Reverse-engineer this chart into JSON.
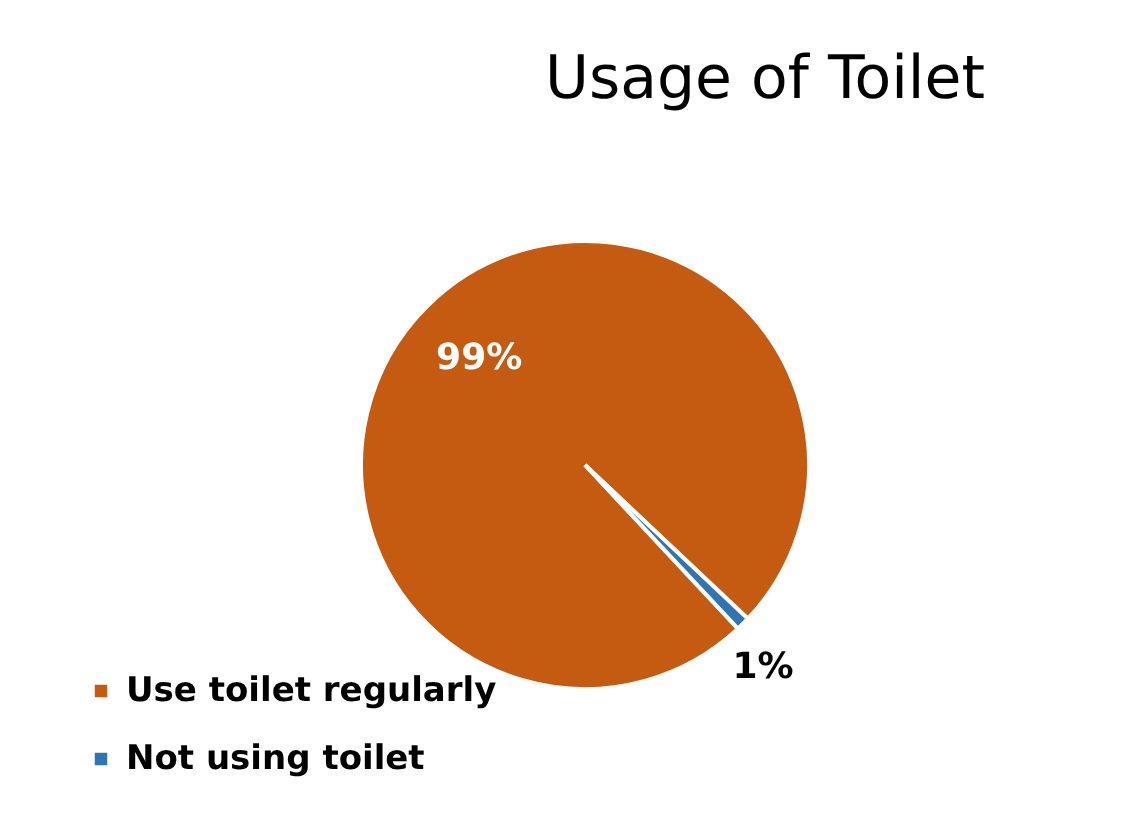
{
  "chart_data": {
    "type": "pie",
    "title": "Usage of Toilet",
    "categories": [
      "Use toilet regularly",
      "Not using toilet"
    ],
    "values": [
      99,
      1
    ],
    "colors": [
      "#c55a11",
      "#2e75b6"
    ],
    "value_labels": [
      "99%",
      "1%"
    ],
    "legend": "bottom left"
  }
}
